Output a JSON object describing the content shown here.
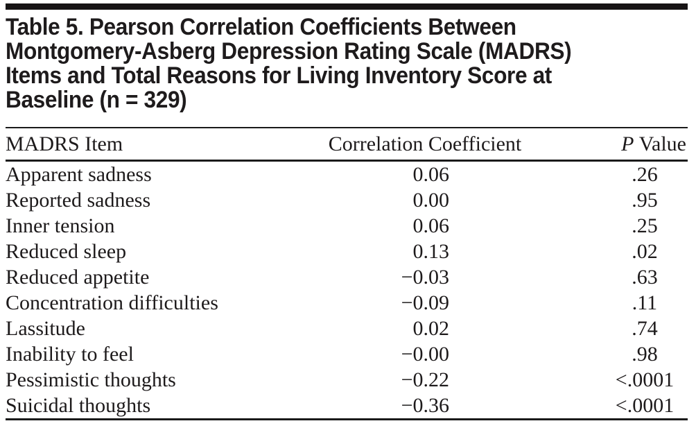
{
  "colors": {
    "text": "#1d1a1b",
    "title_text": "#1e1b1c",
    "rule": "#1a1a1a",
    "background": "#ffffff"
  },
  "title": {
    "lines": [
      "Table 5. Pearson Correlation Coefficients Between",
      "Montgomery-Asberg Depression Rating Scale (MADRS)",
      "Items and Total Reasons for Living Inventory Score at",
      "Baseline (n = 329)"
    ]
  },
  "table": {
    "columns": {
      "item": "MADRS Item",
      "coefficient": "Correlation Coefficient",
      "p_label_italic": "P",
      "p_label_rest": "Value"
    },
    "rows": [
      {
        "item": "Apparent sadness",
        "coefficient": "0.06",
        "p_value": ".26"
      },
      {
        "item": "Reported sadness",
        "coefficient": "0.00",
        "p_value": ".95"
      },
      {
        "item": "Inner tension",
        "coefficient": "0.06",
        "p_value": ".25"
      },
      {
        "item": "Reduced sleep",
        "coefficient": "0.13",
        "p_value": ".02"
      },
      {
        "item": "Reduced appetite",
        "coefficient": "−0.03",
        "p_value": ".63"
      },
      {
        "item": "Concentration difficulties",
        "coefficient": "−0.09",
        "p_value": ".11"
      },
      {
        "item": "Lassitude",
        "coefficient": "0.02",
        "p_value": ".74"
      },
      {
        "item": "Inability to feel",
        "coefficient": "−0.00",
        "p_value": ".98"
      },
      {
        "item": "Pessimistic thoughts",
        "coefficient": "−0.22",
        "p_value": "<.0001"
      },
      {
        "item": "Suicidal thoughts",
        "coefficient": "−0.36",
        "p_value": "<.0001"
      }
    ]
  }
}
